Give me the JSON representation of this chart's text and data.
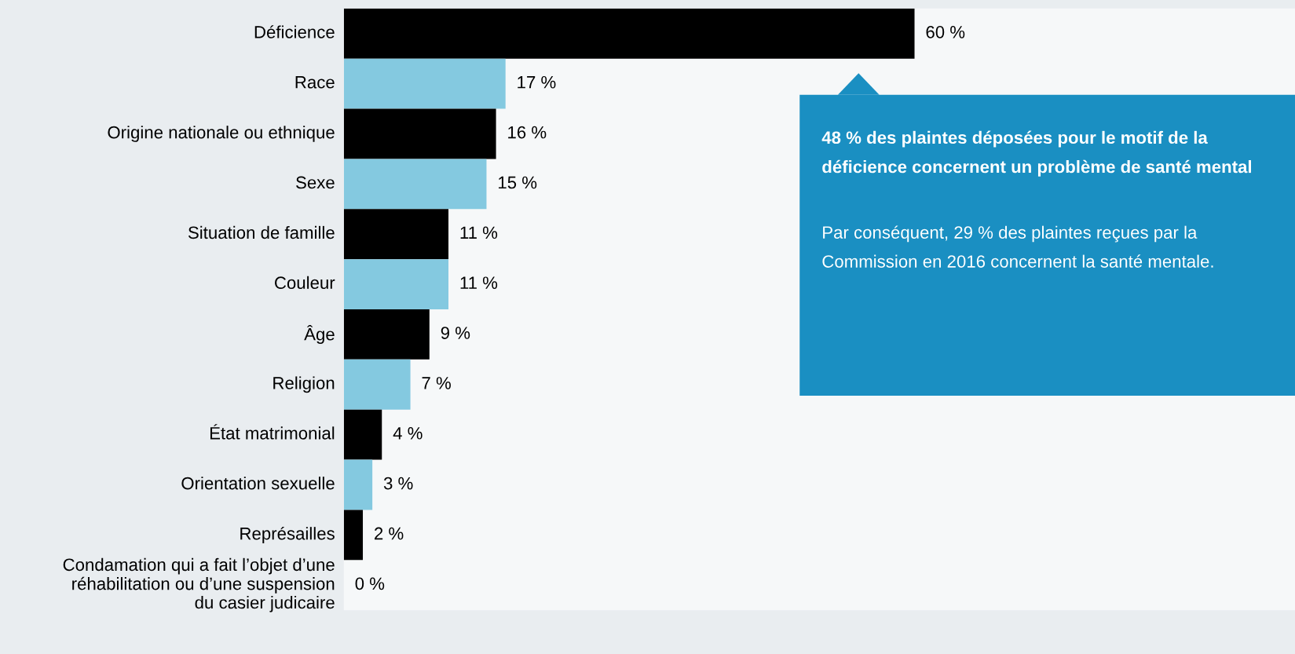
{
  "chart_data": {
    "type": "bar",
    "orientation": "horizontal",
    "categories": [
      "Déficience",
      "Race",
      "Origine nationale ou ethnique",
      "Sexe",
      "Situation de famille",
      "Couleur",
      "Âge",
      "Religion",
      "État matrimonial",
      "Orientation sexuelle",
      "Représailles",
      "Condamation qui a fait l’objet d’une\nréhabilitation ou d’une suspension\ndu casier judicaire"
    ],
    "values": [
      60,
      17,
      16,
      15,
      11,
      11,
      9,
      7,
      4,
      3,
      2,
      0
    ],
    "colors": [
      "#000000",
      "#84c9e0",
      "#000000",
      "#84c9e0",
      "#000000",
      "#84c9e0",
      "#000000",
      "#84c9e0",
      "#000000",
      "#84c9e0",
      "#000000",
      "#84c9e0"
    ],
    "value_labels": [
      "60 %",
      "17 %",
      "16 %",
      "15 %",
      "11 %",
      "11 %",
      "9 %",
      "7 %",
      "4 %",
      "3 %",
      "2 %",
      "0 %"
    ],
    "xlim": [
      0,
      100
    ],
    "tick_labels": "y",
    "grid": false,
    "legend": false,
    "annotations": [
      "48 % des plaintes déposées pour le motif de la déficience concernent un problème de santé mental",
      "Par conséquent, 29 % des plaintes reçues par la Commission en 2016 concernent la santé mentale."
    ]
  }
}
